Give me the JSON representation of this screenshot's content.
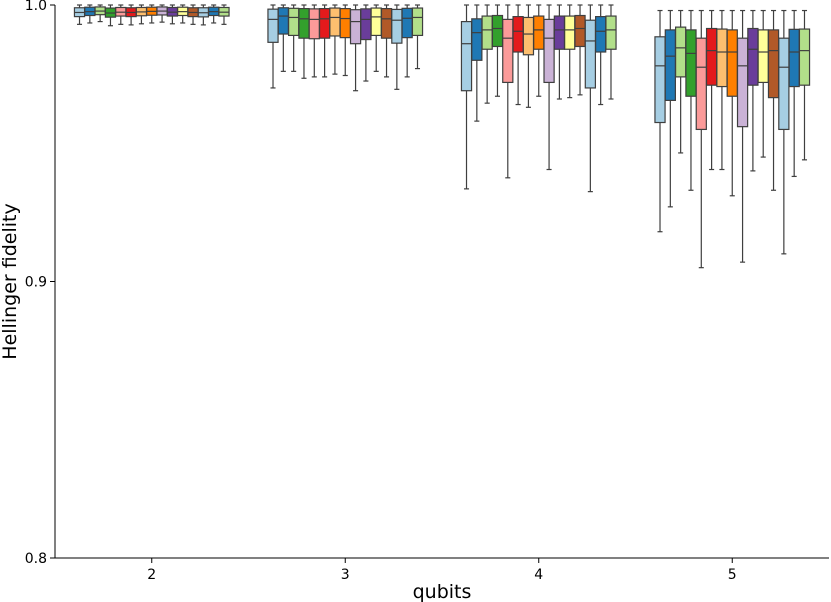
{
  "chart_data": {
    "type": "box",
    "xlabel": "qubits",
    "ylabel": "Hellinger fidelity",
    "ylim": [
      0.8,
      1.0
    ],
    "yticks": [
      "0.8",
      "0.9",
      "1.0"
    ],
    "categories": [
      "2",
      "3",
      "4",
      "5"
    ],
    "series_colors": [
      "#a6cee3",
      "#1f78b4",
      "#b2df8a",
      "#33a02c",
      "#fb9a99",
      "#e31a1c",
      "#fdbf6f",
      "#ff7f00",
      "#cab2d6",
      "#6a3d9a",
      "#ffff99",
      "#b15928",
      "#a6cee3",
      "#1f78b4",
      "#b2df8a"
    ],
    "groups": [
      {
        "category": "2",
        "boxes": [
          {
            "q1": 0.9958,
            "median": 0.9973,
            "q3": 0.999,
            "whislo": 0.993,
            "whishi": 1.0
          },
          {
            "q1": 0.9962,
            "median": 0.9976,
            "q3": 0.9992,
            "whislo": 0.9935,
            "whishi": 1.0
          },
          {
            "q1": 0.9965,
            "median": 0.9978,
            "q3": 0.9993,
            "whislo": 0.994,
            "whishi": 1.0
          },
          {
            "q1": 0.9956,
            "median": 0.9971,
            "q3": 0.9989,
            "whislo": 0.9925,
            "whishi": 1.0
          },
          {
            "q1": 0.996,
            "median": 0.9974,
            "q3": 0.9991,
            "whislo": 0.993,
            "whishi": 1.0
          },
          {
            "q1": 0.9958,
            "median": 0.9973,
            "q3": 0.999,
            "whislo": 0.9928,
            "whishi": 1.0
          },
          {
            "q1": 0.9961,
            "median": 0.9975,
            "q3": 0.9991,
            "whislo": 0.9932,
            "whishi": 1.0
          },
          {
            "q1": 0.9963,
            "median": 0.9977,
            "q3": 0.9992,
            "whislo": 0.9935,
            "whishi": 1.0
          },
          {
            "q1": 0.9964,
            "median": 0.9978,
            "q3": 0.9993,
            "whislo": 0.9938,
            "whishi": 1.0
          },
          {
            "q1": 0.996,
            "median": 0.9974,
            "q3": 0.9991,
            "whislo": 0.9932,
            "whishi": 1.0
          },
          {
            "q1": 0.9962,
            "median": 0.9976,
            "q3": 0.9992,
            "whislo": 0.9935,
            "whishi": 1.0
          },
          {
            "q1": 0.9958,
            "median": 0.9973,
            "q3": 0.999,
            "whislo": 0.993,
            "whishi": 1.0
          },
          {
            "q1": 0.9957,
            "median": 0.9972,
            "q3": 0.999,
            "whislo": 0.9928,
            "whishi": 1.0
          },
          {
            "q1": 0.9962,
            "median": 0.9976,
            "q3": 0.9992,
            "whislo": 0.9935,
            "whishi": 1.0
          },
          {
            "q1": 0.996,
            "median": 0.9974,
            "q3": 0.9991,
            "whislo": 0.993,
            "whishi": 1.0
          }
        ]
      },
      {
        "category": "3",
        "boxes": [
          {
            "q1": 0.9865,
            "median": 0.9948,
            "q3": 0.9985,
            "whislo": 0.97,
            "whishi": 1.0
          },
          {
            "q1": 0.9895,
            "median": 0.996,
            "q3": 0.999,
            "whislo": 0.976,
            "whishi": 1.0
          },
          {
            "q1": 0.989,
            "median": 0.9955,
            "q3": 0.9988,
            "whislo": 0.976,
            "whishi": 1.0
          },
          {
            "q1": 0.988,
            "median": 0.995,
            "q3": 0.9987,
            "whislo": 0.9735,
            "whishi": 1.0
          },
          {
            "q1": 0.9878,
            "median": 0.9948,
            "q3": 0.9986,
            "whislo": 0.974,
            "whishi": 1.0
          },
          {
            "q1": 0.988,
            "median": 0.995,
            "q3": 0.9987,
            "whislo": 0.974,
            "whishi": 1.0
          },
          {
            "q1": 0.9888,
            "median": 0.9955,
            "q3": 0.9989,
            "whislo": 0.975,
            "whishi": 1.0
          },
          {
            "q1": 0.9882,
            "median": 0.9951,
            "q3": 0.9987,
            "whislo": 0.9745,
            "whishi": 1.0
          },
          {
            "q1": 0.986,
            "median": 0.994,
            "q3": 0.9983,
            "whislo": 0.969,
            "whishi": 1.0
          },
          {
            "q1": 0.9875,
            "median": 0.9948,
            "q3": 0.9986,
            "whislo": 0.9725,
            "whishi": 1.0
          },
          {
            "q1": 0.989,
            "median": 0.9957,
            "q3": 0.9989,
            "whislo": 0.976,
            "whishi": 1.0
          },
          {
            "q1": 0.988,
            "median": 0.995,
            "q3": 0.9987,
            "whislo": 0.974,
            "whishi": 1.0
          },
          {
            "q1": 0.9862,
            "median": 0.9945,
            "q3": 0.9984,
            "whislo": 0.9695,
            "whishi": 1.0
          },
          {
            "q1": 0.9882,
            "median": 0.9952,
            "q3": 0.9988,
            "whislo": 0.974,
            "whishi": 1.0
          },
          {
            "q1": 0.989,
            "median": 0.9955,
            "q3": 0.9989,
            "whislo": 0.977,
            "whishi": 1.0
          }
        ]
      },
      {
        "category": "4",
        "boxes": [
          {
            "q1": 0.969,
            "median": 0.986,
            "q3": 0.994,
            "whislo": 0.9335,
            "whishi": 1.0
          },
          {
            "q1": 0.98,
            "median": 0.99,
            "q3": 0.995,
            "whislo": 0.958,
            "whishi": 1.0
          },
          {
            "q1": 0.984,
            "median": 0.991,
            "q3": 0.996,
            "whislo": 0.9645,
            "whishi": 1.0
          },
          {
            "q1": 0.985,
            "median": 0.9915,
            "q3": 0.9962,
            "whislo": 0.967,
            "whishi": 1.0
          },
          {
            "q1": 0.972,
            "median": 0.988,
            "q3": 0.9948,
            "whislo": 0.9375,
            "whishi": 1.0
          },
          {
            "q1": 0.983,
            "median": 0.9905,
            "q3": 0.9958,
            "whislo": 0.964,
            "whishi": 1.0
          },
          {
            "q1": 0.982,
            "median": 0.9895,
            "q3": 0.9955,
            "whislo": 0.963,
            "whishi": 1.0
          },
          {
            "q1": 0.984,
            "median": 0.991,
            "q3": 0.996,
            "whislo": 0.967,
            "whishi": 1.0
          },
          {
            "q1": 0.972,
            "median": 0.988,
            "q3": 0.9948,
            "whislo": 0.9405,
            "whishi": 1.0
          },
          {
            "q1": 0.984,
            "median": 0.991,
            "q3": 0.996,
            "whislo": 0.966,
            "whishi": 1.0
          },
          {
            "q1": 0.984,
            "median": 0.991,
            "q3": 0.996,
            "whislo": 0.9665,
            "whishi": 1.0
          },
          {
            "q1": 0.985,
            "median": 0.9915,
            "q3": 0.9962,
            "whislo": 0.9675,
            "whishi": 1.0
          },
          {
            "q1": 0.97,
            "median": 0.987,
            "q3": 0.9945,
            "whislo": 0.9325,
            "whishi": 1.0
          },
          {
            "q1": 0.983,
            "median": 0.9905,
            "q3": 0.9958,
            "whislo": 0.964,
            "whishi": 1.0
          },
          {
            "q1": 0.984,
            "median": 0.991,
            "q3": 0.996,
            "whislo": 0.966,
            "whishi": 1.0
          }
        ]
      },
      {
        "category": "5",
        "boxes": [
          {
            "q1": 0.9575,
            "median": 0.978,
            "q3": 0.9885,
            "whislo": 0.918,
            "whishi": 0.998
          },
          {
            "q1": 0.9655,
            "median": 0.9815,
            "q3": 0.991,
            "whislo": 0.927,
            "whishi": 0.998
          },
          {
            "q1": 0.974,
            "median": 0.9845,
            "q3": 0.992,
            "whislo": 0.9465,
            "whishi": 0.998
          },
          {
            "q1": 0.967,
            "median": 0.9825,
            "q3": 0.991,
            "whislo": 0.933,
            "whishi": 0.998
          },
          {
            "q1": 0.955,
            "median": 0.9775,
            "q3": 0.988,
            "whislo": 0.905,
            "whishi": 0.998
          },
          {
            "q1": 0.971,
            "median": 0.9835,
            "q3": 0.9915,
            "whislo": 0.9405,
            "whishi": 0.998
          },
          {
            "q1": 0.9705,
            "median": 0.983,
            "q3": 0.9913,
            "whislo": 0.9405,
            "whishi": 0.998
          },
          {
            "q1": 0.967,
            "median": 0.983,
            "q3": 0.991,
            "whislo": 0.931,
            "whishi": 0.998
          },
          {
            "q1": 0.956,
            "median": 0.978,
            "q3": 0.988,
            "whislo": 0.907,
            "whishi": 0.998
          },
          {
            "q1": 0.971,
            "median": 0.984,
            "q3": 0.9915,
            "whislo": 0.94,
            "whishi": 0.998
          },
          {
            "q1": 0.972,
            "median": 0.983,
            "q3": 0.991,
            "whislo": 0.945,
            "whishi": 0.998
          },
          {
            "q1": 0.9665,
            "median": 0.9835,
            "q3": 0.991,
            "whislo": 0.933,
            "whishi": 0.998
          },
          {
            "q1": 0.955,
            "median": 0.9775,
            "q3": 0.988,
            "whislo": 0.91,
            "whishi": 0.998
          },
          {
            "q1": 0.9705,
            "median": 0.983,
            "q3": 0.9912,
            "whislo": 0.938,
            "whishi": 0.998
          },
          {
            "q1": 0.971,
            "median": 0.9835,
            "q3": 0.9913,
            "whislo": 0.944,
            "whishi": 0.998
          }
        ]
      }
    ],
    "grid": false,
    "legend": "none"
  }
}
